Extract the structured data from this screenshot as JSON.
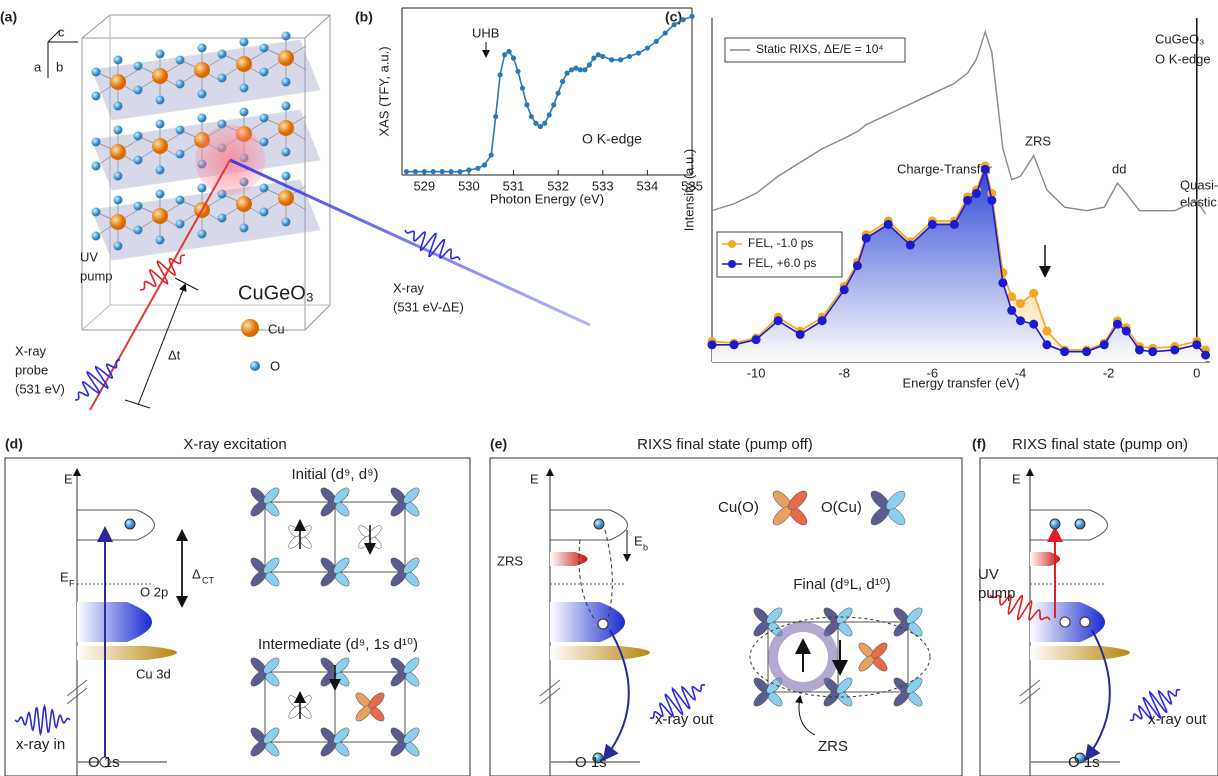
{
  "chart_data": [
    {
      "type": "line",
      "x_label": "Photon Energy (eV)",
      "y_label": "XAS (TFY, a.u.)",
      "annotations": [
        "UHB",
        "O K-edge"
      ],
      "x": [
        528.6,
        528.8,
        529.0,
        529.2,
        529.4,
        529.6,
        529.8,
        530.0,
        530.2,
        530.35,
        530.5,
        530.6,
        530.7,
        530.8,
        530.9,
        531.0,
        531.1,
        531.2,
        531.3,
        531.4,
        531.5,
        531.6,
        531.7,
        531.8,
        531.9,
        532.0,
        532.1,
        532.2,
        532.3,
        532.4,
        532.5,
        532.6,
        532.7,
        532.8,
        532.9,
        533.0,
        533.2,
        533.4,
        533.6,
        533.8,
        534.0,
        534.2,
        534.4,
        534.6,
        534.8,
        535.0
      ],
      "series": [
        {
          "color": "#2a7ab8",
          "markers": true,
          "values": [
            0.02,
            0.02,
            0.02,
            0.02,
            0.02,
            0.02,
            0.02,
            0.03,
            0.04,
            0.06,
            0.12,
            0.35,
            0.6,
            0.72,
            0.74,
            0.7,
            0.62,
            0.52,
            0.42,
            0.35,
            0.31,
            0.29,
            0.31,
            0.36,
            0.42,
            0.49,
            0.56,
            0.61,
            0.63,
            0.64,
            0.63,
            0.63,
            0.66,
            0.7,
            0.72,
            0.71,
            0.69,
            0.69,
            0.71,
            0.73,
            0.76,
            0.8,
            0.85,
            0.9,
            0.93,
            0.95
          ]
        }
      ],
      "xlim": [
        528.5,
        535
      ],
      "xticks": [
        529,
        530,
        531,
        532,
        533,
        534,
        535
      ],
      "ylim": [
        0,
        1
      ]
    },
    {
      "type": "line",
      "x_label": "Energy transfer (eV)",
      "y_label": "Intensity (a.u.)",
      "annotations": [
        "Charge-Transfer",
        "ZRS",
        "dd",
        "Quasi-",
        "elastic",
        "CuGeO₃",
        "O K-edge"
      ],
      "x": [
        -11,
        -10.5,
        -10,
        -9.5,
        -9,
        -8.5,
        -8,
        -7.7,
        -7.5,
        -7,
        -6.5,
        -6,
        -5.5,
        -5.2,
        -5,
        -4.8,
        -4.65,
        -4.4,
        -4.2,
        -4,
        -3.7,
        -3.4,
        -3,
        -2.5,
        -2.1,
        -1.8,
        -1.6,
        -1.3,
        -1,
        -0.5,
        0,
        0.2
      ],
      "series": [
        {
          "name": "Static RIXS, ΔE/E = 10⁴",
          "color": "#8a8a8a",
          "markers": false,
          "fill": false,
          "values": [
            4.4,
            4.6,
            4.9,
            5.4,
            5.8,
            6.2,
            6.5,
            6.7,
            6.9,
            7.2,
            7.5,
            7.8,
            8.1,
            8.4,
            8.8,
            9.6,
            9.0,
            6.2,
            5.3,
            5.4,
            6.0,
            5.0,
            4.5,
            4.4,
            4.5,
            5.2,
            4.9,
            4.4,
            4.4,
            4.4,
            4.7,
            4.3
          ]
        },
        {
          "name": "FEL, -1.0 ps",
          "color": "#f5a623",
          "markers": true,
          "fill": true,
          "values": [
            0.6,
            0.55,
            0.7,
            1.3,
            0.9,
            1.3,
            2.2,
            2.9,
            3.7,
            4.1,
            3.5,
            4.1,
            4.1,
            4.8,
            5.0,
            5.7,
            4.9,
            2.6,
            1.9,
            1.7,
            2.0,
            0.9,
            0.35,
            0.35,
            0.55,
            1.2,
            1.0,
            0.45,
            0.4,
            0.45,
            0.6,
            0.35
          ]
        },
        {
          "name": "FEL, +6.0 ps",
          "color": "#1a1ad0",
          "markers": true,
          "fill": true,
          "values": [
            0.5,
            0.5,
            0.65,
            1.2,
            0.8,
            1.2,
            2.1,
            2.8,
            3.6,
            4.0,
            3.4,
            4.0,
            4.0,
            4.7,
            4.9,
            5.6,
            4.7,
            2.3,
            1.5,
            1.2,
            1.1,
            0.5,
            0.3,
            0.3,
            0.5,
            1.1,
            0.9,
            0.35,
            0.3,
            0.35,
            0.5,
            0.2
          ]
        }
      ],
      "xlim": [
        -11,
        0.3
      ],
      "xticks": [
        -10,
        -8,
        -6,
        -4,
        -2,
        0
      ],
      "ylim": [
        0,
        10
      ]
    }
  ],
  "panel_a": {
    "label": "(a)",
    "axes": [
      "c",
      "a",
      "b"
    ],
    "pump": [
      "UV",
      "pump"
    ],
    "xray_out": [
      "X-ray",
      "(531 eV-ΔE)"
    ],
    "compound": "CuGeO₃",
    "cu": "Cu",
    "o": "O",
    "probe": [
      "X-ray",
      "probe",
      "(531 eV)"
    ],
    "delay": "Δt"
  },
  "panel_b": {
    "label": "(b)"
  },
  "panel_c": {
    "label": "(c)"
  },
  "panel_d": {
    "label": "(d)",
    "title": "X-ray excitation",
    "energy": "E",
    "fermi": [
      "E",
      "F"
    ],
    "gap": [
      "Δ",
      "CT"
    ],
    "o2p": "O 2p",
    "cu3d": "Cu 3d",
    "xray_in": "x-ray in",
    "o1s": "O 1s",
    "initial": "Initial (d⁹, d⁹)",
    "intermediate": "Intermediate (d⁹, 1s d¹⁰)"
  },
  "panel_e": {
    "label": "(e)",
    "title": "RIXS final state (pump off)",
    "energy": "E",
    "zrs": "ZRS",
    "eb": [
      "E",
      "b"
    ],
    "cu_o": "Cu(O)",
    "o_cu": "O(Cu)",
    "final": "Final (d⁹L, d¹⁰)",
    "xray_out": "x-ray out",
    "o1s": "O 1s",
    "zrs2": "ZRS"
  },
  "panel_f": {
    "label": "(f)",
    "title": "RIXS final state (pump on)",
    "energy": "E",
    "pump": [
      "UV",
      "pump"
    ],
    "xray_out": "x-ray out",
    "o1s": "O 1s"
  }
}
